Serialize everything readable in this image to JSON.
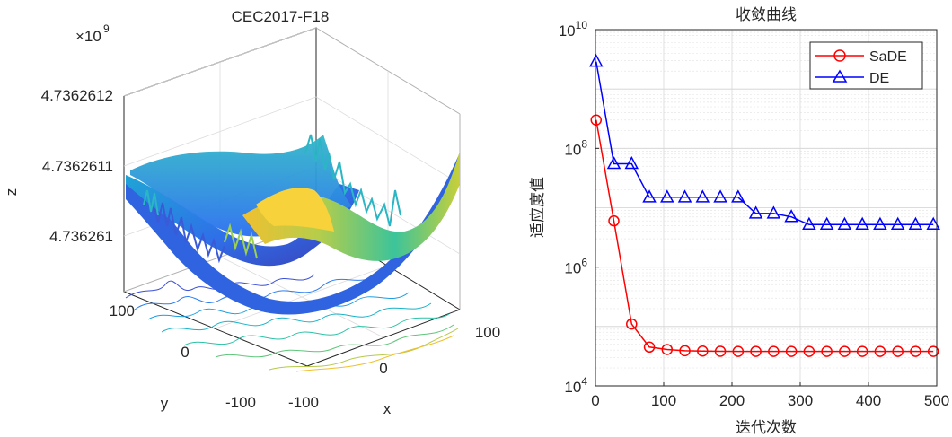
{
  "left_panel": {
    "title": "CEC2017-F18",
    "exponent_prefix": "×10",
    "exponent_power": "9",
    "z_ticks": [
      "4.7362612",
      "4.7362611",
      "4.736261"
    ],
    "x_label": "x",
    "y_label": "y",
    "z_label": "z",
    "x_ticks": [
      "-100",
      "0",
      "100"
    ],
    "y_ticks": [
      "-100",
      "0",
      "100"
    ],
    "colormap": [
      "#3e26a8",
      "#2f6ff4",
      "#1ea8d8",
      "#2cc2a6",
      "#80c760",
      "#e4be3c",
      "#f9fb0e"
    ]
  },
  "chart_data": [
    {
      "type": "line",
      "title": "收敛曲线",
      "xlabel": "迭代次数",
      "ylabel": "适应度值",
      "yscale": "log",
      "xlim": [
        0,
        500
      ],
      "ylim": [
        10000,
        10000000000
      ],
      "x_ticks": [
        "0",
        "100",
        "200",
        "300",
        "400",
        "500"
      ],
      "y_ticks": [
        {
          "base": "10",
          "exp": "4",
          "value": 10000
        },
        {
          "base": "10",
          "exp": "6",
          "value": 1000000
        },
        {
          "base": "10",
          "exp": "8",
          "value": 100000000
        },
        {
          "base": "10",
          "exp": "10",
          "value": 10000000000
        }
      ],
      "grid": true,
      "legend": "top-right",
      "series": [
        {
          "name": "SaDE",
          "color": "#ff0000",
          "marker": "circle",
          "x": [
            1,
            27,
            53,
            79,
            105,
            131,
            157,
            183,
            209,
            235,
            261,
            287,
            313,
            339,
            365,
            391,
            417,
            443,
            469,
            495
          ],
          "y": [
            300000000,
            6000000,
            110000,
            45000,
            41000,
            39000,
            38500,
            38200,
            38000,
            38000,
            38000,
            38000,
            38000,
            38000,
            38000,
            38000,
            38000,
            38000,
            38000,
            38000
          ]
        },
        {
          "name": "DE",
          "color": "#0000ff",
          "marker": "triangle",
          "x": [
            1,
            27,
            53,
            79,
            105,
            131,
            157,
            183,
            209,
            235,
            261,
            287,
            313,
            339,
            365,
            391,
            417,
            443,
            469,
            495
          ],
          "y": [
            2900000000,
            55000000,
            55000000,
            15000000,
            15000000,
            15000000,
            15000000,
            15000000,
            15000000,
            8000000,
            8000000,
            7000000,
            5200000,
            5200000,
            5200000,
            5200000,
            5200000,
            5200000,
            5200000,
            5200000
          ]
        }
      ]
    }
  ]
}
